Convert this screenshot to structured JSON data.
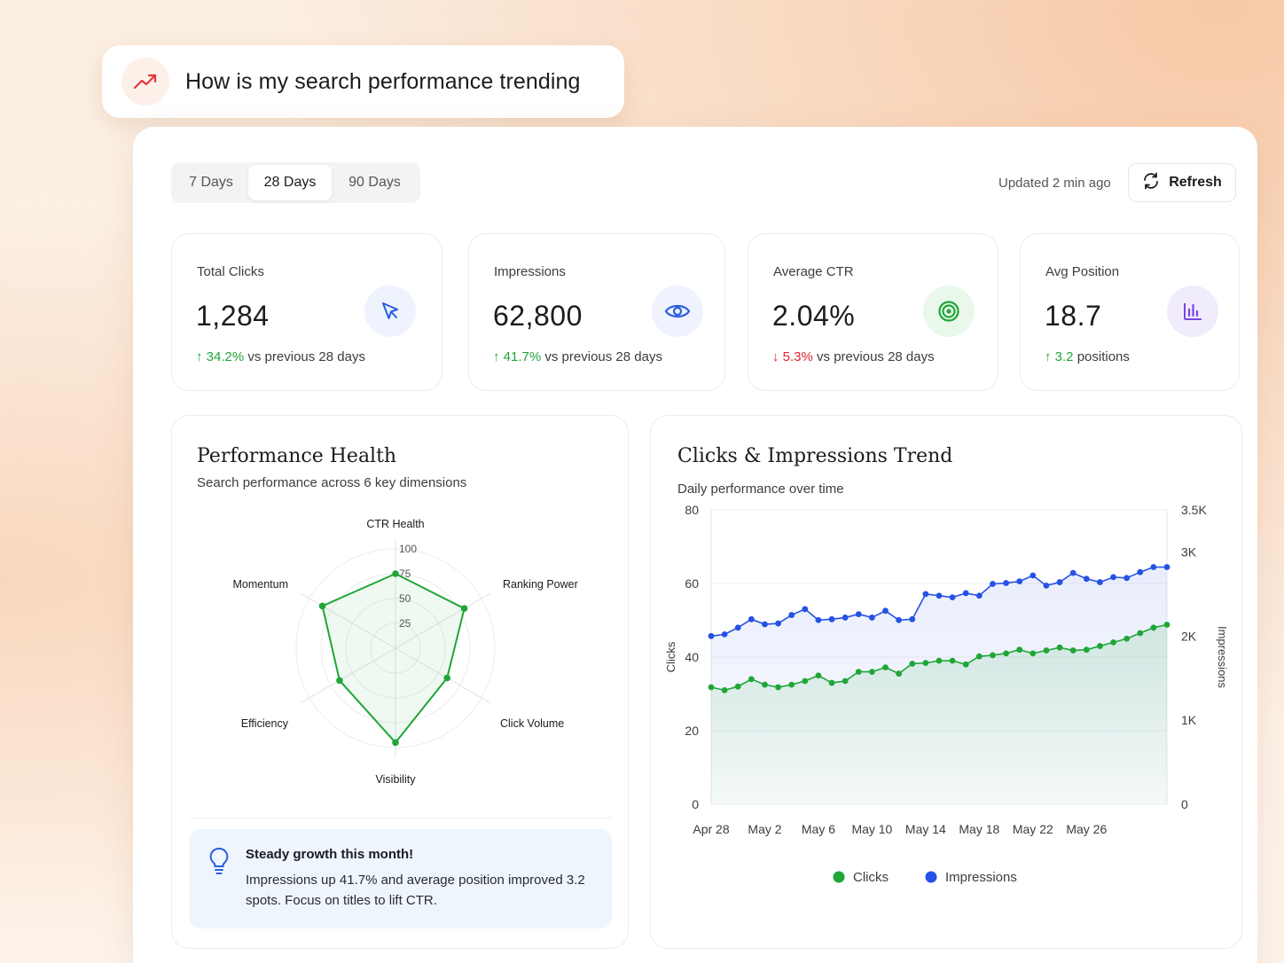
{
  "query": {
    "text": "How is my search performance trending",
    "icon": "trending-up-icon"
  },
  "tabs": [
    {
      "label": "7 Days",
      "active": false
    },
    {
      "label": "28 Days",
      "active": true
    },
    {
      "label": "90 Days",
      "active": false
    }
  ],
  "header": {
    "updated": "Updated 2 min ago",
    "refresh_label": "Refresh"
  },
  "metrics": [
    {
      "label": "Total Clicks",
      "value": "1,284",
      "delta": "34.2%",
      "delta_dir": "up",
      "delta_text": " vs previous 28 days",
      "icon": "cursor-icon",
      "icon_color": "#2c5fe0",
      "icon_bg": "#eef3fd"
    },
    {
      "label": "Impressions",
      "value": "62,800",
      "delta": "41.7%",
      "delta_dir": "up",
      "delta_text": " vs previous 28 days",
      "icon": "eye-icon",
      "icon_color": "#2c5fe0",
      "icon_bg": "#eef3fd"
    },
    {
      "label": "Average CTR",
      "value": "2.04%",
      "delta": "5.3%",
      "delta_dir": "down",
      "delta_text": " vs previous 28 days",
      "icon": "target-icon",
      "icon_color": "#1fa637",
      "icon_bg": "#eaf8ec"
    },
    {
      "label": "Avg Position",
      "value": "18.7",
      "delta": "3.2",
      "delta_dir": "up",
      "delta_text": " positions",
      "icon": "bar-chart-icon",
      "icon_color": "#7b45e6",
      "icon_bg": "#f1ecfc"
    }
  ],
  "health": {
    "title": "Performance Health",
    "subtitle": "Search performance across 6 key dimensions",
    "tip_title": "Steady growth this month!",
    "tip_body": "Impressions up 41.7% and average position improved 3.2 spots. Focus on titles to lift CTR."
  },
  "trend": {
    "title": "Clicks & Impressions Trend",
    "subtitle": "Daily performance over time"
  },
  "chart_data": [
    {
      "type": "radar",
      "axes": [
        "CTR Health",
        "Ranking Power",
        "Click Volume",
        "Visibility",
        "Efficiency",
        "Momentum"
      ],
      "values": [
        75,
        80,
        60,
        95,
        65,
        85
      ],
      "range": [
        0,
        100
      ],
      "ticks": [
        25,
        50,
        75,
        100
      ],
      "color": "#1fa637"
    },
    {
      "type": "line",
      "x": [
        "Apr 28",
        "Apr 29",
        "Apr 30",
        "May 1",
        "May 2",
        "May 3",
        "May 4",
        "May 5",
        "May 6",
        "May 7",
        "May 8",
        "May 9",
        "May 10",
        "May 11",
        "May 12",
        "May 13",
        "May 14",
        "May 15",
        "May 16",
        "May 17",
        "May 18",
        "May 19",
        "May 20",
        "May 21",
        "May 22",
        "May 23",
        "May 24",
        "May 25",
        "May 26",
        "May 27",
        "May 28",
        "May 29",
        "May 30",
        "May 31",
        "June 1"
      ],
      "x_ticks": [
        "Apr 28",
        "May 2",
        "May 6",
        "May 10",
        "May 14",
        "May 18",
        "May 22",
        "May 26"
      ],
      "series": [
        {
          "name": "Clicks",
          "axis": "left",
          "color": "#1fa637",
          "values": [
            31.8,
            31,
            32,
            34,
            32.5,
            31.8,
            32.5,
            33.5,
            35,
            33,
            33.5,
            36,
            36,
            37.2,
            35.5,
            38.2,
            38.4,
            39,
            39,
            38,
            40.2,
            40.5,
            41,
            42,
            41,
            41.8,
            42.6,
            41.8,
            42,
            43,
            44,
            45,
            46.5,
            48,
            48.8
          ]
        },
        {
          "name": "Impressions",
          "axis": "right",
          "color": "#2552e4",
          "values": [
            2000,
            2020,
            2100,
            2200,
            2140,
            2150,
            2250,
            2320,
            2190,
            2200,
            2220,
            2260,
            2220,
            2300,
            2190,
            2200,
            2500,
            2480,
            2460,
            2510,
            2480,
            2620,
            2630,
            2650,
            2720,
            2600,
            2640,
            2750,
            2680,
            2640,
            2700,
            2690,
            2760,
            2820,
            2820
          ]
        }
      ],
      "ylim_left": [
        0,
        80
      ],
      "yticks_left": [
        0,
        20,
        40,
        60,
        80
      ],
      "ylabel_left": "Clicks",
      "ylim_right": [
        0,
        3500
      ],
      "yticks_right": [
        "0",
        "1K",
        "2K",
        "3K",
        "3.5K"
      ],
      "yticks_right_values": [
        0,
        1000,
        2000,
        3000,
        3500
      ],
      "ylabel_right": "Impressions",
      "legend": "bottom-center"
    }
  ]
}
